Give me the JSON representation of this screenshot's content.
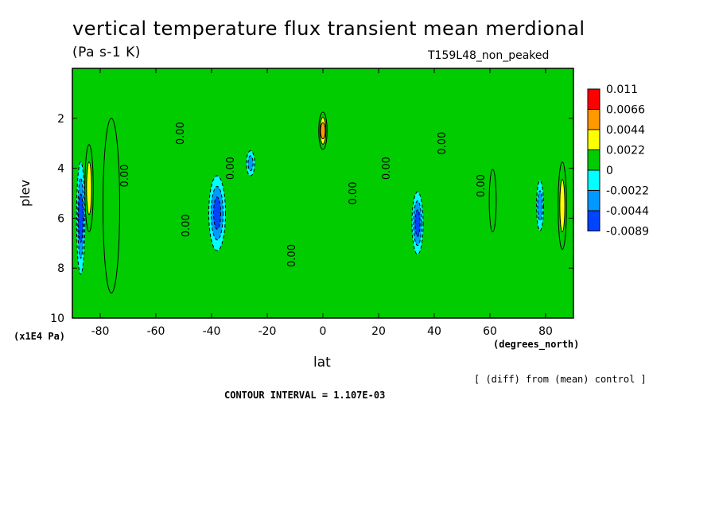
{
  "chart_data": {
    "type": "heatmap",
    "title": "vertical temperature flux transient mean merdional",
    "units": "(Pa s-1 K)",
    "run_id": "T159L48_non_peaked",
    "xlabel": "lat",
    "x_units": "(degrees_north)",
    "ylabel": "plev",
    "y_units": "(x1E4 Pa)",
    "xlim": [
      -90,
      90
    ],
    "ylim": [
      10,
      0
    ],
    "x_ticks": [
      -80,
      -60,
      -40,
      -20,
      0,
      20,
      40,
      60,
      80
    ],
    "x_tick_labels": [
      "-80",
      "-60",
      "-40",
      "-20",
      "0",
      "20",
      "40",
      "60",
      "80"
    ],
    "y_ticks": [
      2,
      4,
      6,
      8,
      10
    ],
    "y_tick_labels": [
      "2",
      "4",
      "6",
      "8",
      "10"
    ],
    "note": "[ (diff) from (mean) control ]",
    "contour_interval_text": "CONTOUR INTERVAL = 1.107E-03",
    "contour_label": "0.00",
    "colorbar": {
      "labels": [
        "0.011",
        "0.0066",
        "0.0044",
        "0.0022",
        "0",
        "-0.0022",
        "-0.0044",
        "-0.0089"
      ],
      "colors": [
        "#ff0000",
        "#ff9900",
        "#ffff00",
        "#00cc00",
        "#00ffff",
        "#0099ff",
        "#0044ff"
      ]
    },
    "features": [
      {
        "lat": -87,
        "p": 6.0,
        "value": -0.005,
        "width": 3,
        "height": 4.5
      },
      {
        "lat": -84,
        "p": 4.8,
        "value": 0.0045,
        "width": 3,
        "height": 3.5
      },
      {
        "lat": -76,
        "p": 5.5,
        "value": 0.001,
        "width": 6,
        "height": 7
      },
      {
        "lat": -38,
        "p": 5.8,
        "value": -0.005,
        "width": 6,
        "height": 3.0
      },
      {
        "lat": -26,
        "p": 3.8,
        "value": -0.0035,
        "width": 3,
        "height": 1.0
      },
      {
        "lat": 0,
        "p": 2.5,
        "value": 0.007,
        "width": 3,
        "height": 1.5
      },
      {
        "lat": 34,
        "p": 6.2,
        "value": -0.005,
        "width": 4,
        "height": 2.5
      },
      {
        "lat": 61,
        "p": 5.3,
        "value": 0.003,
        "width": 2.5,
        "height": 2.5
      },
      {
        "lat": 78,
        "p": 5.5,
        "value": -0.004,
        "width": 2.5,
        "height": 2.0
      },
      {
        "lat": 86,
        "p": 5.5,
        "value": 0.005,
        "width": 3,
        "height": 3.5
      }
    ]
  }
}
